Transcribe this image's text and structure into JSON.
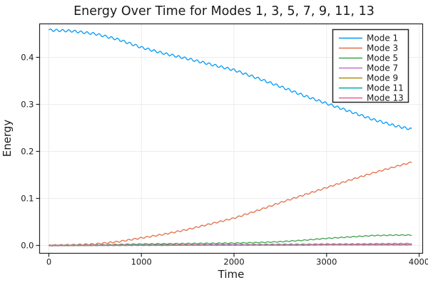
{
  "chart_data": {
    "type": "line",
    "title": "Energy Over Time for Modes 1, 3, 5, 7, 9, 11, 13",
    "xlabel": "Time",
    "ylabel": "Energy",
    "xlim": [
      -100,
      4038
    ],
    "ylim": [
      -0.0167,
      0.4712
    ],
    "x_ticks": [
      0,
      1000,
      2000,
      3000,
      4000
    ],
    "x_tick_labels": [
      "0",
      "1000",
      "2000",
      "3000",
      "4000"
    ],
    "y_ticks": [
      0.0,
      0.1,
      0.2,
      0.3,
      0.4
    ],
    "y_tick_labels": [
      "0.0",
      "0.1",
      "0.2",
      "0.3",
      "0.4"
    ],
    "grid": true,
    "legend_position": "top-right",
    "oscillation_period": 66,
    "x_control": [
      0,
      250,
      500,
      750,
      1000,
      1250,
      1500,
      1750,
      2000,
      2250,
      2500,
      2750,
      3000,
      3250,
      3500,
      3750,
      3920
    ],
    "series": [
      {
        "name": "Mode 1",
        "color": "#009af9",
        "wiggle": 0.0025,
        "values": [
          0.458,
          0.456,
          0.45,
          0.438,
          0.421,
          0.408,
          0.397,
          0.385,
          0.373,
          0.356,
          0.338,
          0.319,
          0.302,
          0.285,
          0.268,
          0.254,
          0.247
        ]
      },
      {
        "name": "Mode 3",
        "color": "#e26e47",
        "wiggle": 0.0015,
        "values": [
          0.0,
          0.001,
          0.003,
          0.008,
          0.016,
          0.024,
          0.034,
          0.046,
          0.058,
          0.074,
          0.091,
          0.107,
          0.123,
          0.139,
          0.154,
          0.168,
          0.177
        ]
      },
      {
        "name": "Mode 5",
        "color": "#3da44d",
        "wiggle": 0.0009,
        "values": [
          0.0,
          0.0005,
          0.001,
          0.002,
          0.003,
          0.0035,
          0.004,
          0.0045,
          0.005,
          0.006,
          0.008,
          0.011,
          0.015,
          0.018,
          0.021,
          0.022,
          0.022
        ]
      },
      {
        "name": "Mode 7",
        "color": "#c271d2",
        "wiggle": 0.0009,
        "values": [
          0.0,
          0.0,
          0.0005,
          0.001,
          0.001,
          0.0015,
          0.0015,
          0.002,
          0.002,
          0.002,
          0.0025,
          0.0025,
          0.003,
          0.003,
          0.0035,
          0.004,
          0.004
        ]
      },
      {
        "name": "Mode 9",
        "color": "#ac8d18",
        "wiggle": 0.0004,
        "values": [
          0.0,
          0.0,
          0.0,
          0.0005,
          0.0005,
          0.001,
          0.001,
          0.001,
          0.001,
          0.0015,
          0.0015,
          0.0015,
          0.002,
          0.002,
          0.002,
          0.002,
          0.002
        ]
      },
      {
        "name": "Mode 11",
        "color": "#00a9ad",
        "wiggle": 0.0003,
        "values": [
          0.0,
          0.0,
          0.0,
          0.0,
          0.0005,
          0.0005,
          0.0005,
          0.001,
          0.001,
          0.001,
          0.001,
          0.001,
          0.0015,
          0.0015,
          0.0015,
          0.0015,
          0.0015
        ]
      },
      {
        "name": "Mode 13",
        "color": "#ed5d92",
        "wiggle": 0.0003,
        "values": [
          0.0,
          0.0,
          0.0,
          0.0,
          0.0,
          0.0,
          0.0005,
          0.0005,
          0.0005,
          0.0005,
          0.0005,
          0.0005,
          0.001,
          0.001,
          0.001,
          0.001,
          0.001
        ]
      }
    ],
    "theme": {
      "background": "#ffffff",
      "frame_color": "#26262b",
      "grid_color": "#ececec",
      "text_color": "#1a1a1a",
      "legend_border": "#26262b",
      "legend_background": "#ffffff"
    }
  }
}
